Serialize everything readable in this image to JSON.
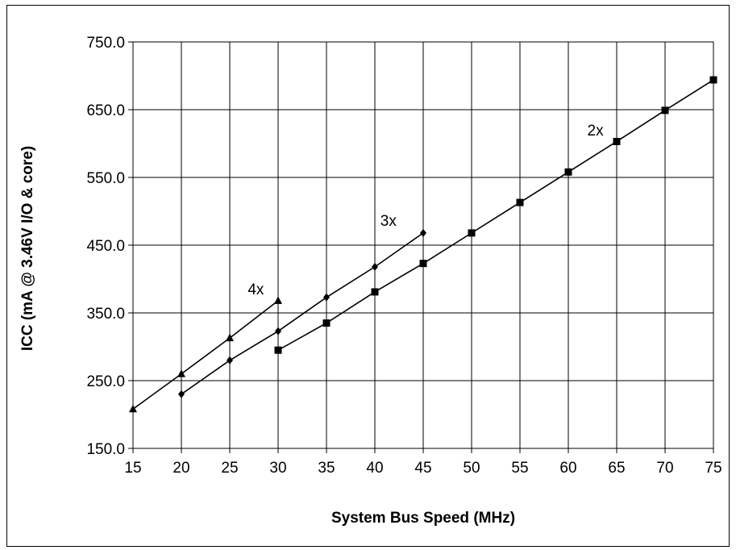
{
  "chart_data": {
    "type": "line",
    "xlabel": "System Bus Speed (MHz)",
    "ylabel": "ICC (mA @ 3.46V I/O & core)",
    "xlim": [
      15,
      75
    ],
    "ylim": [
      150,
      750
    ],
    "x_ticks": [
      "15",
      "20",
      "25",
      "30",
      "35",
      "40",
      "45",
      "50",
      "55",
      "60",
      "65",
      "70",
      "75"
    ],
    "y_ticks": [
      "150.0",
      "250.0",
      "350.0",
      "450.0",
      "550.0",
      "650.0",
      "750.0"
    ],
    "grid": true,
    "legend": "none",
    "series": [
      {
        "name": "4x",
        "marker": "triangle",
        "x": [
          15,
          20,
          25,
          30
        ],
        "y": [
          208,
          260,
          313,
          368
        ]
      },
      {
        "name": "3x",
        "marker": "diamond",
        "x": [
          20,
          25,
          30,
          35,
          40,
          45
        ],
        "y": [
          230,
          280,
          323,
          373,
          418,
          468
        ]
      },
      {
        "name": "2x",
        "marker": "square",
        "x": [
          30,
          35,
          40,
          45,
          50,
          55,
          60,
          65,
          70,
          75
        ],
        "y": [
          295,
          335,
          381,
          423,
          468,
          513,
          558,
          603,
          649,
          694
        ]
      }
    ],
    "series_label_positions": [
      {
        "name": "4x",
        "x": 27.7,
        "y": 386
      },
      {
        "name": "3x",
        "x": 41.4,
        "y": 487
      },
      {
        "name": "2x",
        "x": 62.8,
        "y": 620
      }
    ]
  }
}
